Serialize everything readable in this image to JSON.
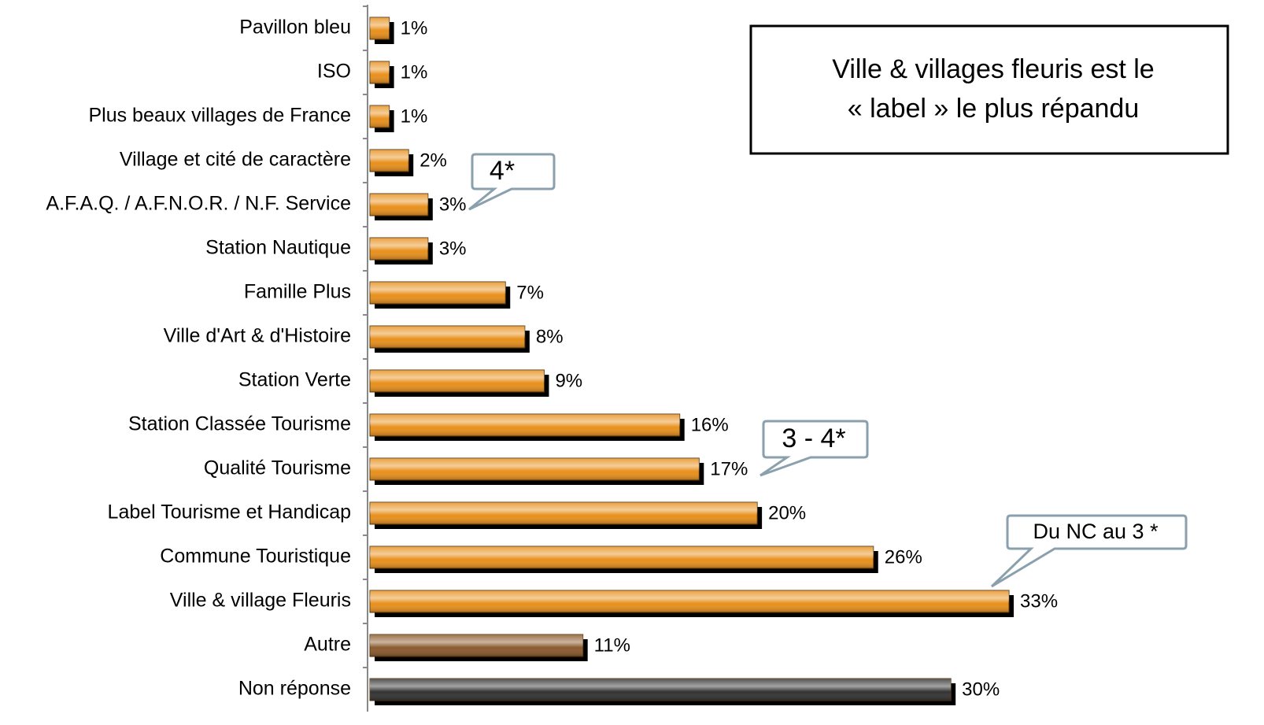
{
  "chart_data": {
    "type": "bar",
    "orientation": "horizontal",
    "categories": [
      "Pavillon bleu",
      "ISO",
      "Plus beaux villages de France",
      "Village et cité de caractère",
      "A.F.A.Q. / A.F.N.O.R. / N.F. Service",
      "Station Nautique",
      "Famille Plus",
      "Ville d'Art & d'Histoire",
      "Station Verte",
      "Station Classée Tourisme",
      "Qualité Tourisme",
      "Label Tourisme et Handicap",
      "Commune Touristique",
      "Ville & village Fleuris",
      "Autre",
      "Non réponse"
    ],
    "values": [
      1,
      1,
      1,
      2,
      3,
      3,
      7,
      8,
      9,
      16,
      17,
      20,
      26,
      33,
      11,
      30
    ],
    "value_labels": [
      "1%",
      "1%",
      "1%",
      "2%",
      "3%",
      "3%",
      "7%",
      "8%",
      "9%",
      "16%",
      "17%",
      "20%",
      "26%",
      "33%",
      "11%",
      "30%"
    ],
    "colors": [
      "#e8901c",
      "#e8901c",
      "#e8901c",
      "#e8901c",
      "#e8901c",
      "#e8901c",
      "#e8901c",
      "#e8901c",
      "#e8901c",
      "#e8901c",
      "#e8901c",
      "#e8901c",
      "#e8901c",
      "#e8901c",
      "#8a5a2c",
      "#333333"
    ],
    "annotations": {
      "box": [
        "Ville & villages fleuris est le",
        "« label » le plus répandu"
      ],
      "callouts": [
        "4*",
        "3 - 4*",
        "Du NC au 3 *"
      ]
    }
  }
}
